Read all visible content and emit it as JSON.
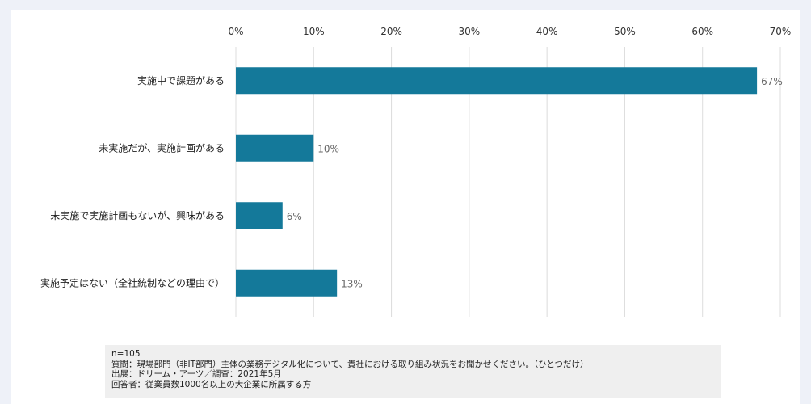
{
  "chart_data": {
    "type": "bar",
    "orientation": "horizontal",
    "categories": [
      "実施中で課題がある",
      "未実施だが、実施計画がある",
      "未実施で実施計画もないが、興味がある",
      "実施予定はない（全社統制などの理由で）"
    ],
    "values": [
      67,
      10,
      6,
      13
    ],
    "value_labels": [
      "67%",
      "10%",
      "6%",
      "13%"
    ],
    "xlim": [
      0,
      70
    ],
    "x_ticks": [
      0,
      10,
      20,
      30,
      40,
      50,
      60,
      70
    ],
    "x_tick_labels": [
      "0%",
      "10%",
      "20%",
      "30%",
      "40%",
      "50%",
      "60%",
      "70%"
    ],
    "x_axis_position": "top",
    "grid": true,
    "legend": "none",
    "bar_color": "#14799a"
  },
  "notes": {
    "sample": "n=105",
    "question": "質問：現場部門（非IT部門）主体の業務デジタル化について、貴社における取り組み状況をお聞かせください。（ひとつだけ）",
    "source": "出展：ドリーム・アーツ／調査：2021年5月",
    "respondents": "回答者：従業員数1000名以上の大企業に所属する方"
  }
}
